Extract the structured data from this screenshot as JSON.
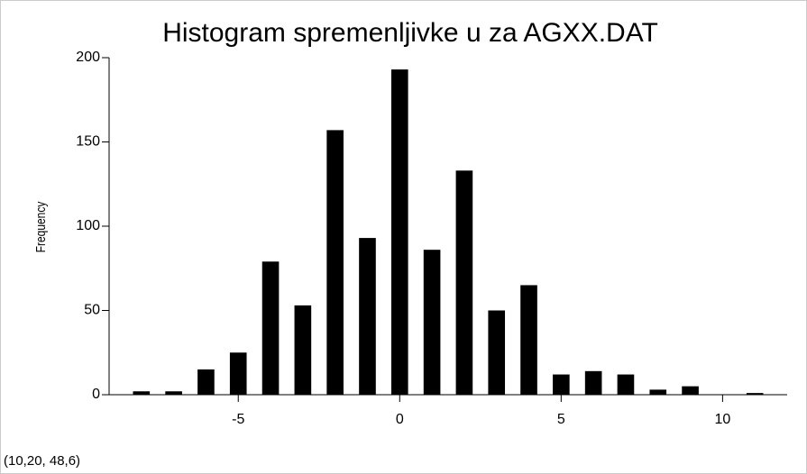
{
  "chart_data": {
    "type": "bar",
    "title": "Histogram spremenljivke u za AGXX.DAT",
    "ylabel": "Frequency",
    "x": [
      -8,
      -7,
      -6,
      -5,
      -4,
      -3,
      -2,
      -1,
      0,
      1,
      2,
      3,
      4,
      5,
      6,
      7,
      8,
      9,
      10,
      11
    ],
    "values": [
      2,
      2,
      15,
      25,
      79,
      53,
      157,
      93,
      193,
      86,
      133,
      50,
      65,
      12,
      14,
      12,
      3,
      5,
      0,
      1
    ],
    "color": "#000000",
    "xlim": [
      -9,
      12
    ],
    "xticks": [
      -5,
      0,
      5,
      10
    ],
    "ylim": [
      0,
      200
    ],
    "yticks": [
      0,
      50,
      100,
      150,
      200
    ],
    "status": "(10,20, 48,6)"
  }
}
